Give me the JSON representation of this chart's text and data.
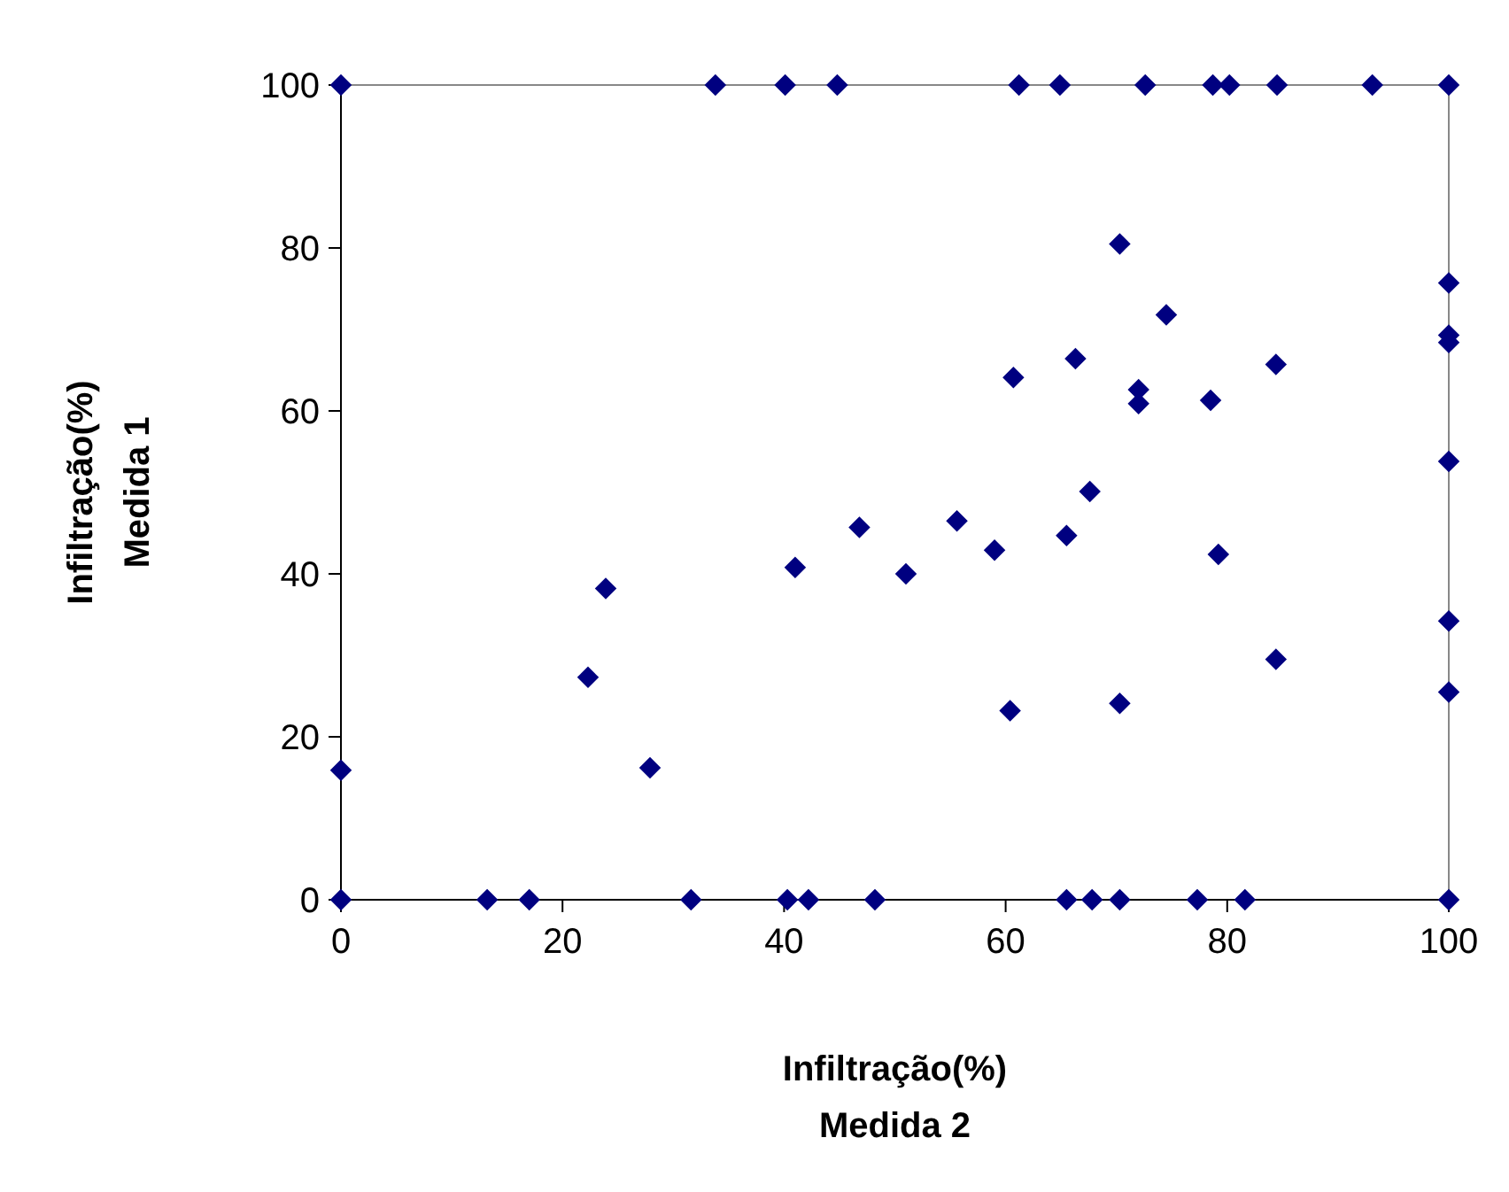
{
  "chart_data": {
    "type": "scatter",
    "xlabel": "Infiltração(%)\nMedida 2",
    "ylabel": "Infiltração(%)\nMedida 1",
    "xlim": [
      0,
      100
    ],
    "ylim": [
      0,
      100
    ],
    "xticks": [
      0,
      20,
      40,
      60,
      80,
      100
    ],
    "yticks": [
      0,
      20,
      40,
      60,
      80,
      100
    ],
    "grid": false,
    "marker": "diamond",
    "series": [
      {
        "color": "#000080",
        "x": [
          0,
          33.8,
          40.1,
          44.8,
          61.2,
          64.9,
          72.6,
          78.7,
          80.2,
          84.5,
          93.1,
          100,
          70.3,
          100,
          74.5,
          100,
          100,
          66.3,
          84.4,
          60.7,
          72.0,
          72.0,
          78.5,
          100,
          67.6,
          46.8,
          55.6,
          65.5,
          59.0,
          79.2,
          41.0,
          51.0,
          23.9,
          100,
          22.3,
          84.4,
          100,
          60.4,
          70.3,
          0,
          27.9,
          0,
          13.2,
          17.0,
          31.6,
          40.3,
          42.2,
          48.2,
          65.5,
          67.8,
          70.3,
          77.3,
          81.6,
          100
        ],
        "values": [
          100,
          100,
          100,
          100,
          100,
          100,
          100,
          100,
          100,
          100,
          100,
          100,
          80.5,
          75.7,
          71.8,
          69.3,
          68.4,
          66.4,
          65.7,
          64.1,
          62.6,
          60.9,
          61.3,
          53.8,
          50.1,
          45.7,
          46.5,
          44.7,
          42.9,
          42.4,
          40.8,
          40.0,
          38.2,
          34.2,
          27.3,
          29.5,
          25.5,
          23.2,
          24.1,
          15.9,
          16.2,
          0,
          0,
          0,
          0,
          0,
          0,
          0,
          0,
          0,
          0,
          0,
          0,
          0
        ]
      }
    ]
  }
}
